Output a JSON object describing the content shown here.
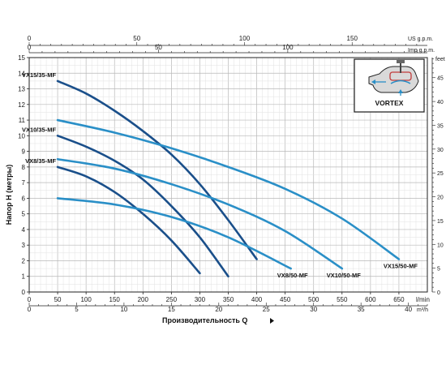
{
  "chart_data": {
    "type": "line",
    "title": "",
    "xlabel": "Производительность Q",
    "ylabel": "Напор H (метры)",
    "x_unit": "l/min",
    "y_unit": "m",
    "xlim": [
      0,
      700
    ],
    "ylim": [
      0,
      15
    ],
    "x_ticks": [
      0,
      50,
      100,
      150,
      200,
      250,
      300,
      350,
      400,
      450,
      500,
      550,
      600,
      650
    ],
    "y_ticks": [
      0,
      1,
      2,
      3,
      4,
      5,
      6,
      7,
      8,
      9,
      10,
      11,
      12,
      13,
      14,
      15
    ],
    "grid": true,
    "secondary_axes": {
      "us_gpm": {
        "unit": "US g.p.m.",
        "ticks": [
          0,
          50,
          100,
          150
        ]
      },
      "imp_gpm": {
        "unit": "Imp g.p.m.",
        "ticks": [
          0,
          50,
          100
        ]
      },
      "m3h": {
        "unit": "m³/h",
        "ticks": [
          0,
          5,
          10,
          15,
          20,
          25,
          30,
          35,
          40
        ]
      },
      "feet": {
        "unit": "feet",
        "ticks": [
          0,
          5,
          10,
          15,
          20,
          25,
          30,
          35,
          40,
          45
        ]
      }
    },
    "series": [
      {
        "name": "VX15/35-MF",
        "color": "#1a4f8a",
        "label_pos": "left",
        "x": [
          50,
          100,
          150,
          200,
          250,
          300,
          350,
          400
        ],
        "y": [
          13.5,
          12.7,
          11.6,
          10.3,
          8.8,
          6.9,
          4.6,
          2.1
        ]
      },
      {
        "name": "VX10/35-MF",
        "color": "#1a4f8a",
        "label_pos": "left",
        "x": [
          50,
          100,
          150,
          200,
          250,
          300,
          350
        ],
        "y": [
          10.0,
          9.3,
          8.4,
          7.2,
          5.5,
          3.5,
          1.0
        ]
      },
      {
        "name": "VX8/35-MF",
        "color": "#1a4f8a",
        "label_pos": "left",
        "x": [
          50,
          100,
          150,
          200,
          250,
          300
        ],
        "y": [
          8.0,
          7.4,
          6.4,
          5.0,
          3.3,
          1.2
        ]
      },
      {
        "name": "VX15/50-MF",
        "color": "#2a8fc7",
        "label_pos": "right",
        "x": [
          50,
          150,
          250,
          350,
          450,
          550,
          650
        ],
        "y": [
          11.0,
          10.2,
          9.2,
          8.0,
          6.6,
          4.7,
          2.1
        ]
      },
      {
        "name": "VX10/50-MF",
        "color": "#2a8fc7",
        "label_pos": "right",
        "x": [
          50,
          150,
          250,
          350,
          450,
          550
        ],
        "y": [
          8.5,
          7.9,
          6.9,
          5.6,
          3.9,
          1.5
        ]
      },
      {
        "name": "VX8/50-MF",
        "color": "#2a8fc7",
        "label_pos": "right",
        "x": [
          50,
          150,
          250,
          350,
          460
        ],
        "y": [
          6.0,
          5.6,
          4.8,
          3.5,
          1.5
        ]
      }
    ]
  },
  "inset": {
    "label": "VORTEX"
  }
}
